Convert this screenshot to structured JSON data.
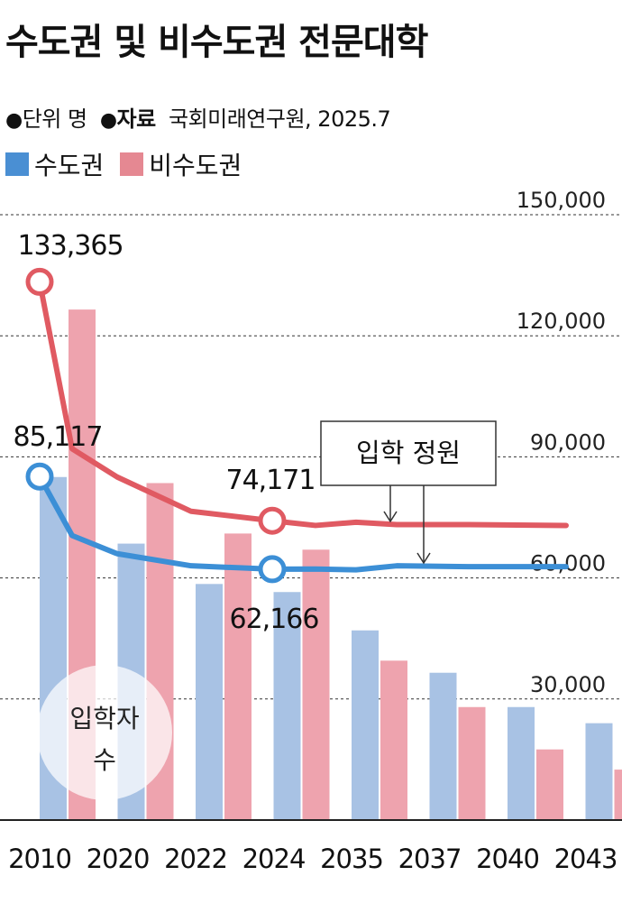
{
  "header": {
    "title": "수도권 및 비수도권 전문대학",
    "unit_bullet": "●",
    "unit_text": "단위 명",
    "source_bullet": "●",
    "source_label": "자료",
    "source_text": "국회미래연구원, 2025.7"
  },
  "colors": {
    "capital_bar": "#a8c2e4",
    "noncapital_bar": "#eea3ae",
    "capital_line": "#3c8fd6",
    "noncapital_line": "#e05a62",
    "capital_legend": "#4a8fd3",
    "noncapital_legend": "#e58892"
  },
  "chart_data": {
    "type": "bar",
    "categories": [
      "2010",
      "2020",
      "2022",
      "2024",
      "2035",
      "2037",
      "2040",
      "2043"
    ],
    "ylim": [
      0,
      150000
    ],
    "yticks": [
      30000,
      60000,
      90000,
      120000,
      150000
    ],
    "ytick_labels": [
      "30,000",
      "60,000",
      "90,000",
      "120,000",
      "150,000"
    ],
    "grid": "dashed horizontal",
    "legend_position": "top-left",
    "series": [
      {
        "name": "수도권",
        "kind": "bar",
        "values": [
          85000,
          68500,
          58500,
          56500,
          47000,
          36500,
          28000,
          24000
        ]
      },
      {
        "name": "비수도권",
        "kind": "bar",
        "values": [
          126500,
          83500,
          71000,
          67000,
          39500,
          28000,
          17500,
          12500
        ]
      }
    ],
    "bar_annotation": "입학자수",
    "lines_label": "입학 정원",
    "lines": [
      {
        "name": "수도권 입학 정원",
        "x": [
          2010,
          2012,
          2020,
          2022,
          2024,
          2026,
          2035,
          2037,
          2040,
          2043
        ],
        "values": [
          85117,
          70500,
          66000,
          63000,
          62166,
          62200,
          62000,
          63000,
          62800,
          62800
        ]
      },
      {
        "name": "비수도권 입학 정원",
        "x": [
          2010,
          2012,
          2020,
          2022,
          2024,
          2026,
          2035,
          2037,
          2040,
          2043
        ],
        "values": [
          133365,
          92000,
          85000,
          76500,
          74171,
          73000,
          73800,
          73200,
          73200,
          73000
        ]
      }
    ],
    "data_labels": [
      {
        "text": "133,365",
        "series": "비수도권 입학 정원",
        "x": 2010,
        "value": 133365
      },
      {
        "text": "85,117",
        "series": "수도권 입학 정원",
        "x": 2010,
        "value": 85117
      },
      {
        "text": "74,171",
        "series": "비수도권 입학 정원",
        "x": 2024,
        "value": 74171
      },
      {
        "text": "62,166",
        "series": "수도권 입학 정원",
        "x": 2024,
        "value": 62166
      }
    ]
  }
}
